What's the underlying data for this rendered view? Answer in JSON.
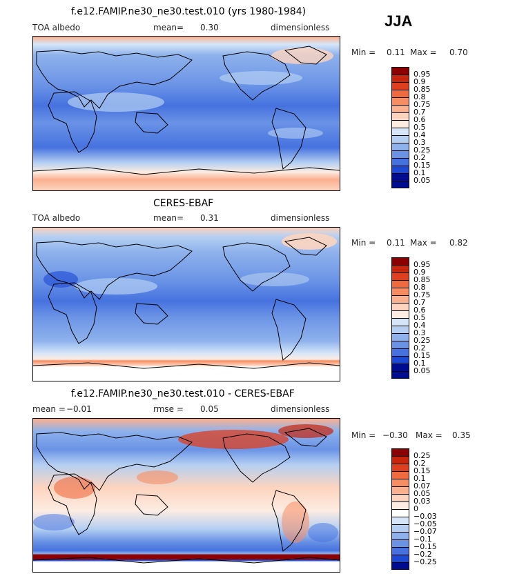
{
  "season": "JJA",
  "panels": [
    {
      "title": "f.e12.FAMIP.ne30_ne30.test.010 (yrs 1980-1984)",
      "left_label": "TOA albedo",
      "center_label": "mean=",
      "center_value": "0.30",
      "right_label": "dimensionless",
      "min_label": "Min =",
      "min_value": "0.11",
      "max_label": "Max =",
      "max_value": "0.70",
      "levels": [
        "0.95",
        "0.9",
        "0.85",
        "0.8",
        "0.75",
        "0.7",
        "0.6",
        "0.5",
        "0.4",
        "0.3",
        "0.25",
        "0.2",
        "0.15",
        "0.1",
        "0.05"
      ],
      "colors": [
        "#8b0000",
        "#c8250d",
        "#dd3f1f",
        "#ef6a3e",
        "#f78d62",
        "#fbb08f",
        "#fdd4bf",
        "#fdece2",
        "#d6e6f8",
        "#b4cff2",
        "#8fb2ec",
        "#6a93e6",
        "#4672df",
        "#1d48d4",
        "#000c8f"
      ]
    },
    {
      "title": "CERES-EBAF",
      "left_label": "TOA albedo",
      "center_label": "mean=",
      "center_value": "0.31",
      "right_label": "dimensionless",
      "min_label": "Min =",
      "min_value": "0.11",
      "max_label": "Max =",
      "max_value": "0.82",
      "levels": [
        "0.95",
        "0.9",
        "0.85",
        "0.8",
        "0.75",
        "0.7",
        "0.6",
        "0.5",
        "0.4",
        "0.3",
        "0.25",
        "0.2",
        "0.15",
        "0.1",
        "0.05"
      ],
      "colors": [
        "#8b0000",
        "#c8250d",
        "#dd3f1f",
        "#ef6a3e",
        "#f78d62",
        "#fbb08f",
        "#fdd4bf",
        "#fdece2",
        "#d6e6f8",
        "#b4cff2",
        "#8fb2ec",
        "#6a93e6",
        "#4672df",
        "#1d48d4",
        "#000c8f"
      ]
    },
    {
      "title": "f.e12.FAMIP.ne30_ne30.test.010 - CERES-EBAF",
      "left_label": "mean =",
      "left_value": "−0.01",
      "center_label": "rmse =",
      "center_value": "0.05",
      "right_label": "dimensionless",
      "min_label": "Min =",
      "min_value": "−0.30",
      "max_label": "Max =",
      "max_value": "0.35",
      "levels": [
        "0.25",
        "0.2",
        "0.15",
        "0.1",
        "0.07",
        "0.05",
        "0.03",
        "0",
        "−0.03",
        "−0.05",
        "−0.07",
        "−0.1",
        "−0.15",
        "−0.2",
        "−0.25"
      ],
      "colors": [
        "#8b0000",
        "#c8250d",
        "#dd3f1f",
        "#ef6a3e",
        "#f78d62",
        "#fbb08f",
        "#fdd4bf",
        "#fdece2",
        "#ffffff",
        "#d6e6f8",
        "#b4cff2",
        "#8fb2ec",
        "#6a93e6",
        "#4672df",
        "#1d48d4",
        "#000c8f"
      ]
    }
  ],
  "chart_data": [
    {
      "type": "heatmap",
      "title": "f.e12.FAMIP.ne30_ne30.test.010 (yrs 1980-1984)",
      "variable": "TOA albedo",
      "units": "dimensionless",
      "mean": 0.3,
      "min": 0.11,
      "max": 0.7,
      "contour_levels": [
        0.05,
        0.1,
        0.15,
        0.2,
        0.25,
        0.3,
        0.4,
        0.5,
        0.6,
        0.7,
        0.75,
        0.8,
        0.85,
        0.9,
        0.95
      ]
    },
    {
      "type": "heatmap",
      "title": "CERES-EBAF",
      "variable": "TOA albedo",
      "units": "dimensionless",
      "mean": 0.31,
      "min": 0.11,
      "max": 0.82,
      "contour_levels": [
        0.05,
        0.1,
        0.15,
        0.2,
        0.25,
        0.3,
        0.4,
        0.5,
        0.6,
        0.7,
        0.75,
        0.8,
        0.85,
        0.9,
        0.95
      ]
    },
    {
      "type": "heatmap",
      "title": "f.e12.FAMIP.ne30_ne30.test.010 - CERES-EBAF",
      "units": "dimensionless",
      "mean": -0.01,
      "rmse": 0.05,
      "min": -0.3,
      "max": 0.35,
      "contour_levels": [
        -0.25,
        -0.2,
        -0.15,
        -0.1,
        -0.07,
        -0.05,
        -0.03,
        0,
        0.03,
        0.05,
        0.07,
        0.1,
        0.15,
        0.2,
        0.25
      ]
    }
  ]
}
